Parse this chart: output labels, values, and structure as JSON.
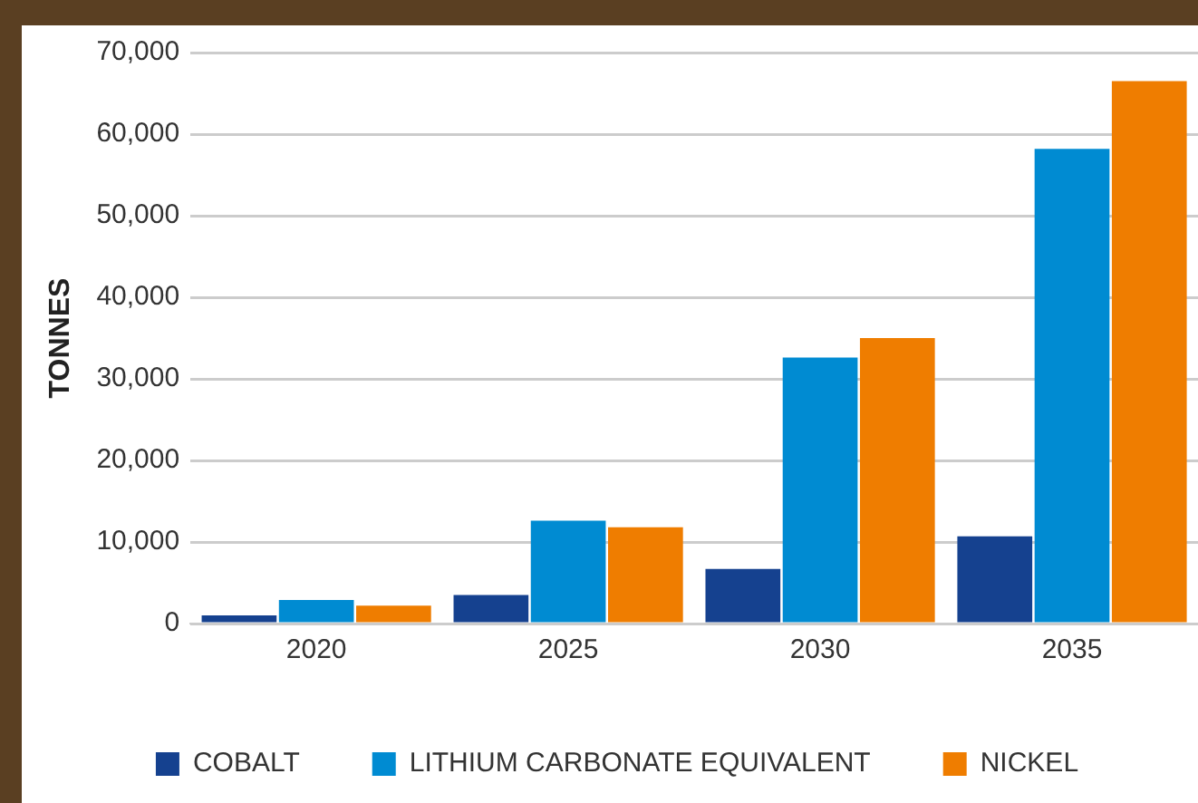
{
  "chart_data": {
    "type": "bar",
    "ylabel": "TONNES",
    "categories": [
      "2020",
      "2025",
      "2030",
      "2035"
    ],
    "series": [
      {
        "name": "COBALT",
        "color": "#15418f",
        "values": [
          1000,
          3500,
          6700,
          10700
        ]
      },
      {
        "name": "LITHIUM CARBONATE EQUIVALENT",
        "color": "#008bd2",
        "values": [
          2900,
          12600,
          32600,
          58200
        ]
      },
      {
        "name": "NICKEL",
        "color": "#ef7d00",
        "values": [
          2200,
          11800,
          35000,
          66500
        ]
      }
    ],
    "ylim": [
      0,
      70000
    ],
    "yticks": [
      {
        "value": 0,
        "label": "0"
      },
      {
        "value": 10000,
        "label": "10,000"
      },
      {
        "value": 20000,
        "label": "20,000"
      },
      {
        "value": 30000,
        "label": "30,000"
      },
      {
        "value": 40000,
        "label": "40,000"
      },
      {
        "value": 50000,
        "label": "50,000"
      },
      {
        "value": 60000,
        "label": "60,000"
      },
      {
        "value": 70000,
        "label": "70,000"
      }
    ],
    "grid": "y",
    "legend": "bottom"
  }
}
